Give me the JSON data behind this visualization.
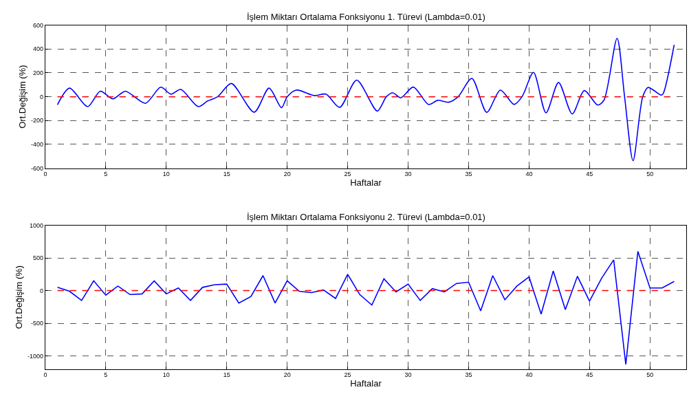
{
  "chart_data": [
    {
      "type": "line",
      "title": "İşlem Miktarı Ortalama Fonksiyonu 1. Türevi (Lambda=0.01)",
      "xlabel": "Haftalar",
      "ylabel": "Ort.Değişim (%)",
      "series": [
        {
          "color": "#0000ff",
          "x": [
            1,
            2,
            3.5,
            4.54,
            5.58,
            6.62,
            8.28,
            9.54,
            10.39,
            11.2,
            12.65,
            13.4,
            14.25,
            15.38,
            17.27,
            18.5,
            19.53,
            20,
            20.76,
            22.27,
            23.2,
            24.34,
            25.75,
            27.45,
            28.2,
            28.73,
            29.4,
            30.43,
            31.69,
            32.45,
            33.35,
            34.14,
            35.27,
            36.5,
            37.63,
            38.76,
            39.42,
            40.37,
            41.4,
            42.44,
            43.57,
            44.57,
            45.68,
            46.2,
            47.28,
            47.9,
            48.6,
            49.4,
            49.85,
            50.92,
            51.1,
            52
          ],
          "values": [
            -68,
            72,
            -83,
            46,
            -18,
            46,
            -55,
            80,
            22,
            61,
            -83,
            -37,
            0,
            111,
            -130,
            72,
            -92,
            0,
            56,
            9,
            22,
            -89,
            139,
            -120,
            0,
            33,
            -9,
            81,
            -65,
            -30,
            -46,
            0,
            154,
            -131,
            56,
            -65,
            0,
            204,
            -135,
            120,
            -144,
            52,
            -70,
            -28,
            490,
            0,
            -537,
            0,
            78,
            13,
            28,
            435
          ]
        }
      ],
      "ref_lines": [
        {
          "axis": "y",
          "value": 0,
          "color": "#ff0000",
          "line_style": "dashed"
        }
      ],
      "xlim": [
        0,
        53
      ],
      "xticks": [
        0,
        5,
        10,
        15,
        20,
        25,
        30,
        35,
        40,
        45,
        50
      ],
      "ylim": [
        -600,
        600
      ],
      "yticks": [
        -600,
        -400,
        -200,
        0,
        200,
        400,
        600
      ],
      "grid": true,
      "line_style": "solid",
      "marker": "none"
    },
    {
      "type": "line",
      "title": "İşlem Miktarı Ortalama Fonksiyonu 2. Türevi (Lambda=0.01)",
      "xlabel": "Haftalar",
      "ylabel": "Ort.Değişim (%)",
      "series": [
        {
          "color": "#0000ff",
          "x": [
            1,
            2,
            3,
            4,
            5,
            6,
            7,
            8,
            9,
            10,
            11,
            12,
            13,
            14,
            15,
            16,
            17,
            18,
            19,
            20,
            21,
            22,
            23,
            24,
            25,
            26,
            27,
            28,
            29,
            30,
            31,
            32,
            33,
            34,
            35,
            36,
            37,
            38,
            39,
            40,
            41,
            42,
            43,
            44,
            45,
            46,
            47,
            48,
            49,
            50,
            51,
            52
          ],
          "values": [
            50,
            -10,
            -150,
            150,
            -70,
            70,
            -60,
            -50,
            150,
            -50,
            40,
            -150,
            50,
            90,
            100,
            -190,
            -90,
            230,
            -190,
            150,
            -10,
            -30,
            10,
            -120,
            250,
            -60,
            -220,
            180,
            -20,
            100,
            -150,
            30,
            -20,
            110,
            130,
            -310,
            230,
            -140,
            70,
            210,
            -360,
            300,
            -290,
            220,
            -160,
            190,
            470,
            -1130,
            600,
            40,
            40,
            140
          ]
        }
      ],
      "ref_lines": [
        {
          "axis": "y",
          "value": 0,
          "color": "#ff0000",
          "line_style": "dashed"
        }
      ],
      "xlim": [
        0,
        53
      ],
      "xticks": [
        0,
        5,
        10,
        15,
        20,
        25,
        30,
        35,
        40,
        45,
        50
      ],
      "ylim": [
        -1200,
        1000
      ],
      "yticks": [
        -1000,
        -500,
        0,
        500,
        1000
      ],
      "grid": true,
      "line_style": "solid",
      "marker": "none"
    }
  ]
}
